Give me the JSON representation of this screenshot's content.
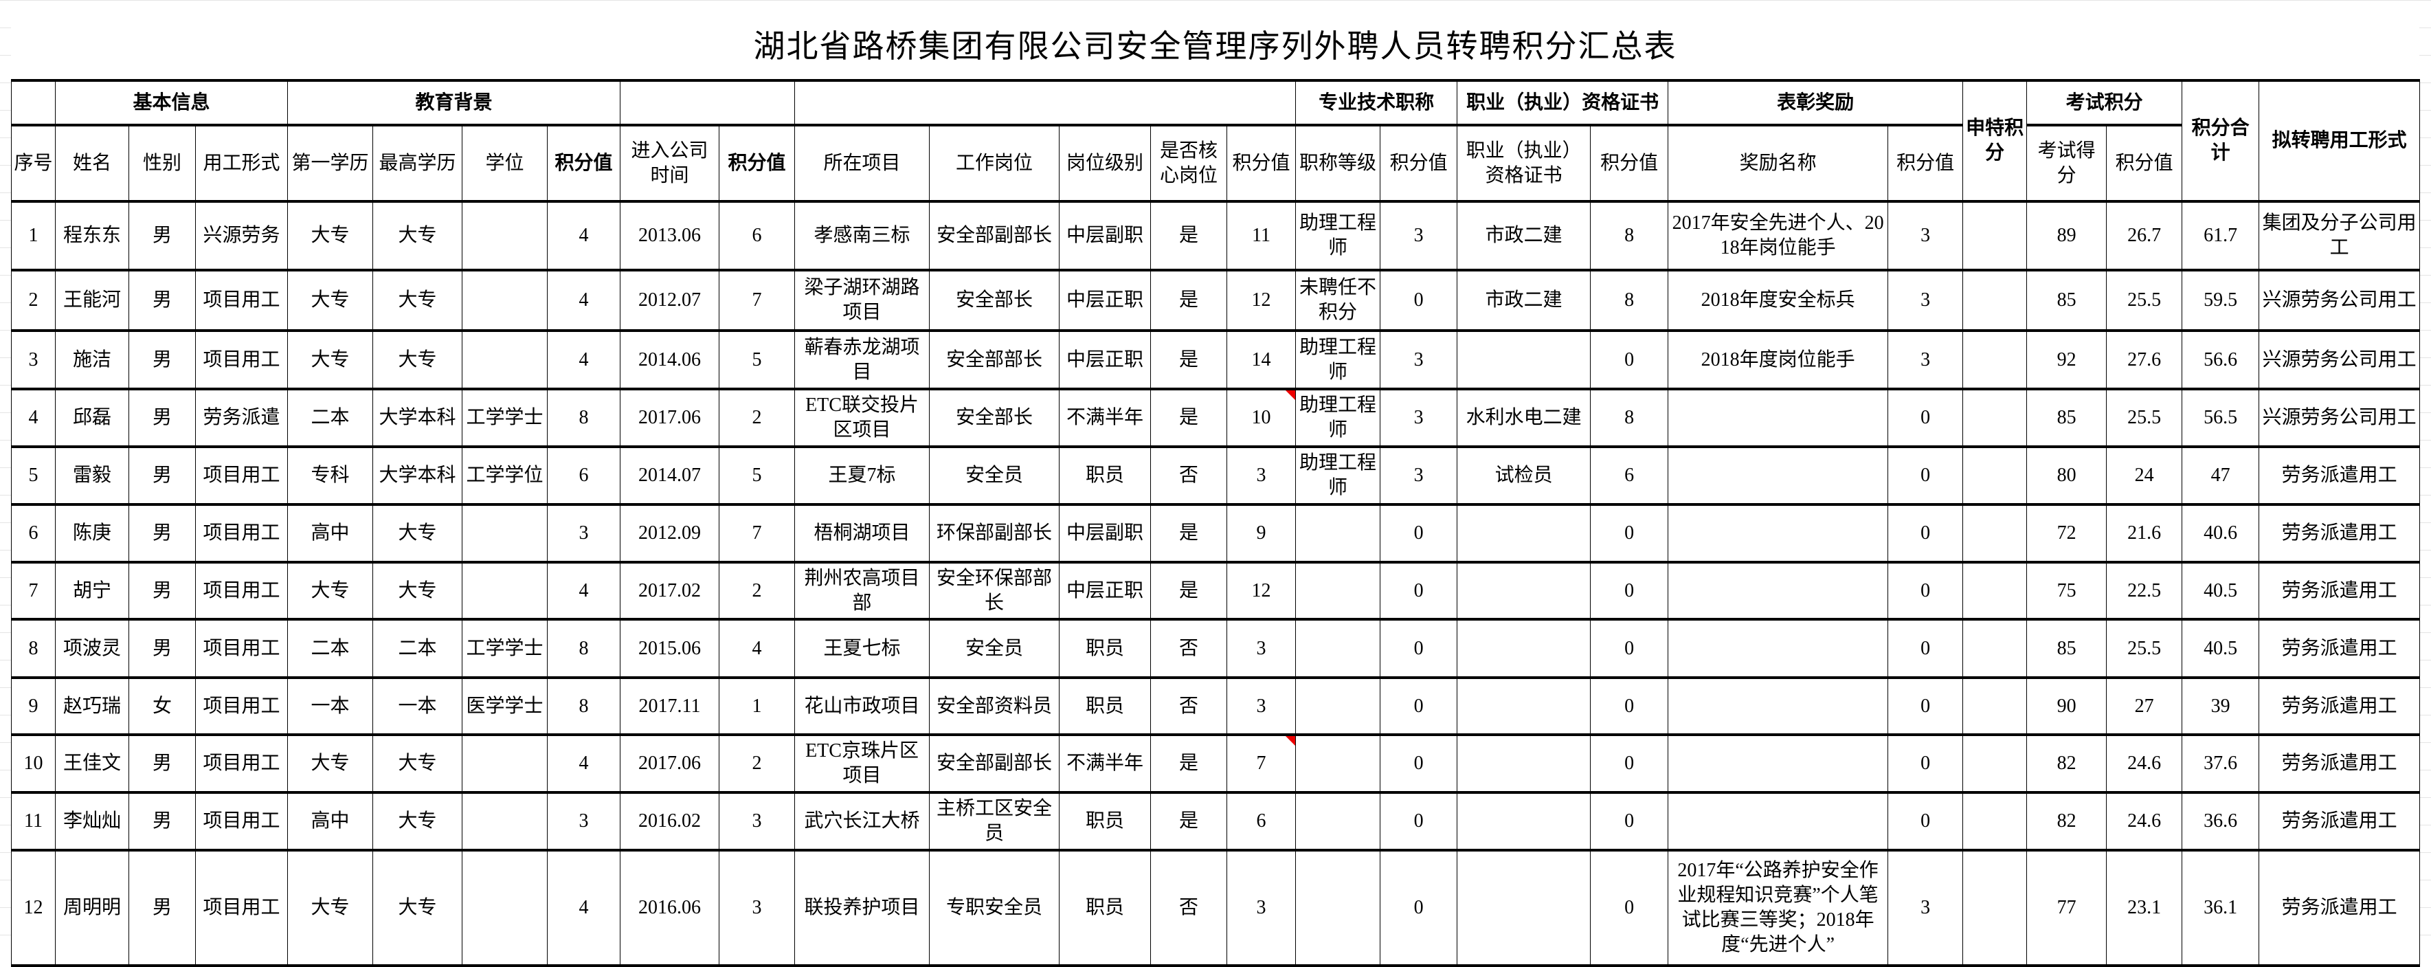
{
  "title": "湖北省路桥集团有限公司安全管理序列外聘人员转聘积分汇总表",
  "header_groups": {
    "basic": "基本信息",
    "education": "教育背景",
    "title": "专业技术职称",
    "cert": "职业（执业）资格证书",
    "award": "表彰奖励",
    "special": "申特积分",
    "exam": "考试积分",
    "total": "积分合计",
    "final": "拟转聘用工形式"
  },
  "columns": {
    "seq": "序号",
    "name": "姓名",
    "gender": "性别",
    "form": "用工形式",
    "edu1": "第一学历",
    "edu_high": "最高学历",
    "degree": "学位",
    "edu_score": "积分值",
    "entry": "进入公司时间",
    "entry_score": "积分值",
    "project": "所在项目",
    "post": "工作岗位",
    "level": "岗位级别",
    "core": "是否核心岗位",
    "post_score": "积分值",
    "title": "职称等级",
    "title_score": "积分值",
    "cert": "职业（执业）资格证书",
    "cert_score": "积分值",
    "award": "奖励名称",
    "award_score": "积分值",
    "exam": "考试得分",
    "exam_score": "积分值"
  },
  "rows": [
    {
      "seq": "1",
      "name": "程东东",
      "gender": "男",
      "form": "兴源劳务",
      "edu1": "大专",
      "edu_high": "大专",
      "degree": "",
      "edu_score": "4",
      "entry": "2013.06",
      "entry_score": "6",
      "project": "孝感南三标",
      "post": "安全部副部长",
      "level": "中层副职",
      "core": "是",
      "post_score": "11",
      "title": "助理工程师",
      "title_score": "3",
      "cert": "市政二建",
      "cert_score": "8",
      "award": "2017年安全先进个人、2018年岗位能手",
      "award_score": "3",
      "special": "",
      "exam": "89",
      "exam_score": "26.7",
      "total": "61.7",
      "final": "集团及分子公司用工"
    },
    {
      "seq": "2",
      "name": "王能河",
      "gender": "男",
      "form": "项目用工",
      "edu1": "大专",
      "edu_high": "大专",
      "degree": "",
      "edu_score": "4",
      "entry": "2012.07",
      "entry_score": "7",
      "project": "梁子湖环湖路项目",
      "post": "安全部长",
      "level": "中层正职",
      "core": "是",
      "post_score": "12",
      "title": "未聘任不积分",
      "title_score": "0",
      "cert": "市政二建",
      "cert_score": "8",
      "award": "2018年度安全标兵",
      "award_score": "3",
      "special": "",
      "exam": "85",
      "exam_score": "25.5",
      "total": "59.5",
      "final": "兴源劳务公司用工"
    },
    {
      "seq": "3",
      "name": "施洁",
      "gender": "男",
      "form": "项目用工",
      "edu1": "大专",
      "edu_high": "大专",
      "degree": "",
      "edu_score": "4",
      "entry": "2014.06",
      "entry_score": "5",
      "project": "蕲春赤龙湖项目",
      "post": "安全部部长",
      "level": "中层正职",
      "core": "是",
      "post_score": "14",
      "title": "助理工程师",
      "title_score": "3",
      "cert": "",
      "cert_score": "0",
      "award": "2018年度岗位能手",
      "award_score": "3",
      "special": "",
      "exam": "92",
      "exam_score": "27.6",
      "total": "56.6",
      "final": "兴源劳务公司用工"
    },
    {
      "seq": "4",
      "name": "邱磊",
      "gender": "男",
      "form": "劳务派遣",
      "edu1": "二本",
      "edu_high": "大学本科",
      "degree": "工学学士",
      "edu_score": "8",
      "entry": "2017.06",
      "entry_score": "2",
      "project": "ETC联交投片区项目",
      "post": "安全部长",
      "level": "不满半年",
      "core": "是",
      "post_score": "10",
      "title": "助理工程师",
      "title_score": "3",
      "cert": "水利水电二建",
      "cert_score": "8",
      "award": "",
      "award_score": "0",
      "special": "",
      "exam": "85",
      "exam_score": "25.5",
      "total": "56.5",
      "final": "兴源劳务公司用工",
      "comment": true
    },
    {
      "seq": "5",
      "name": "雷毅",
      "gender": "男",
      "form": "项目用工",
      "edu1": "专科",
      "edu_high": "大学本科",
      "degree": "工学学位",
      "edu_score": "6",
      "entry": "2014.07",
      "entry_score": "5",
      "project": "王夏7标",
      "post": "安全员",
      "level": "职员",
      "core": "否",
      "post_score": "3",
      "title": "助理工程师",
      "title_score": "3",
      "cert": "试检员",
      "cert_score": "6",
      "award": "",
      "award_score": "0",
      "special": "",
      "exam": "80",
      "exam_score": "24",
      "total": "47",
      "final": "劳务派遣用工"
    },
    {
      "seq": "6",
      "name": "陈庚",
      "gender": "男",
      "form": "项目用工",
      "edu1": "高中",
      "edu_high": "大专",
      "degree": "",
      "edu_score": "3",
      "entry": "2012.09",
      "entry_score": "7",
      "project": "梧桐湖项目",
      "post": "环保部副部长",
      "level": "中层副职",
      "core": "是",
      "post_score": "9",
      "title": "",
      "title_score": "0",
      "cert": "",
      "cert_score": "0",
      "award": "",
      "award_score": "0",
      "special": "",
      "exam": "72",
      "exam_score": "21.6",
      "total": "40.6",
      "final": "劳务派遣用工"
    },
    {
      "seq": "7",
      "name": "胡宁",
      "gender": "男",
      "form": "项目用工",
      "edu1": "大专",
      "edu_high": "大专",
      "degree": "",
      "edu_score": "4",
      "entry": "2017.02",
      "entry_score": "2",
      "project": "荆州农高项目部",
      "post": "安全环保部部长",
      "level": "中层正职",
      "core": "是",
      "post_score": "12",
      "title": "",
      "title_score": "0",
      "cert": "",
      "cert_score": "0",
      "award": "",
      "award_score": "0",
      "special": "",
      "exam": "75",
      "exam_score": "22.5",
      "total": "40.5",
      "final": "劳务派遣用工"
    },
    {
      "seq": "8",
      "name": "项波灵",
      "gender": "男",
      "form": "项目用工",
      "edu1": "二本",
      "edu_high": "二本",
      "degree": "工学学士",
      "edu_score": "8",
      "entry": "2015.06",
      "entry_score": "4",
      "project": "王夏七标",
      "post": "安全员",
      "level": "职员",
      "core": "否",
      "post_score": "3",
      "title": "",
      "title_score": "0",
      "cert": "",
      "cert_score": "0",
      "award": "",
      "award_score": "0",
      "special": "",
      "exam": "85",
      "exam_score": "25.5",
      "total": "40.5",
      "final": "劳务派遣用工"
    },
    {
      "seq": "9",
      "name": "赵巧瑞",
      "gender": "女",
      "form": "项目用工",
      "edu1": "一本",
      "edu_high": "一本",
      "degree": "医学学士",
      "edu_score": "8",
      "entry": "2017.11",
      "entry_score": "1",
      "project": "花山市政项目",
      "post": "安全部资料员",
      "level": "职员",
      "core": "否",
      "post_score": "3",
      "title": "",
      "title_score": "0",
      "cert": "",
      "cert_score": "0",
      "award": "",
      "award_score": "0",
      "special": "",
      "exam": "90",
      "exam_score": "27",
      "total": "39",
      "final": "劳务派遣用工"
    },
    {
      "seq": "10",
      "name": "王佳文",
      "gender": "男",
      "form": "项目用工",
      "edu1": "大专",
      "edu_high": "大专",
      "degree": "",
      "edu_score": "4",
      "entry": "2017.06",
      "entry_score": "2",
      "project": "ETC京珠片区项目",
      "post": "安全部副部长",
      "level": "不满半年",
      "core": "是",
      "post_score": "7",
      "title": "",
      "title_score": "0",
      "cert": "",
      "cert_score": "0",
      "award": "",
      "award_score": "0",
      "special": "",
      "exam": "82",
      "exam_score": "24.6",
      "total": "37.6",
      "final": "劳务派遣用工",
      "comment": true
    },
    {
      "seq": "11",
      "name": "李灿灿",
      "gender": "男",
      "form": "项目用工",
      "edu1": "高中",
      "edu_high": "大专",
      "degree": "",
      "edu_score": "3",
      "entry": "2016.02",
      "entry_score": "3",
      "project": "武穴长江大桥",
      "post": "主桥工区安全员",
      "level": "职员",
      "core": "是",
      "post_score": "6",
      "title": "",
      "title_score": "0",
      "cert": "",
      "cert_score": "0",
      "award": "",
      "award_score": "0",
      "special": "",
      "exam": "82",
      "exam_score": "24.6",
      "total": "36.6",
      "final": "劳务派遣用工"
    },
    {
      "seq": "12",
      "name": "周明明",
      "gender": "男",
      "form": "项目用工",
      "edu1": "大专",
      "edu_high": "大专",
      "degree": "",
      "edu_score": "4",
      "entry": "2016.06",
      "entry_score": "3",
      "project": "联投养护项目",
      "post": "专职安全员",
      "level": "职员",
      "core": "否",
      "post_score": "3",
      "title": "",
      "title_score": "0",
      "cert": "",
      "cert_score": "0",
      "award": "2017年“公路养护安全作业规程知识竞赛”个人笔试比赛三等奖；2018年度“先进个人”",
      "award_score": "3",
      "special": "",
      "exam": "77",
      "exam_score": "23.1",
      "total": "36.1",
      "final": "劳务派遣用工"
    }
  ]
}
